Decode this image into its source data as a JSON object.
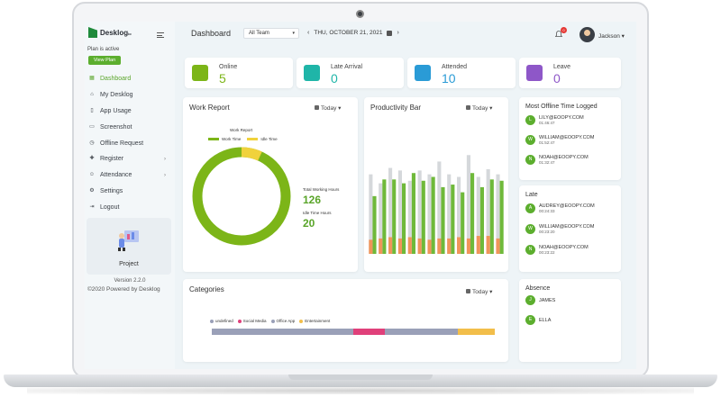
{
  "app": {
    "logo_text": "Desklog",
    "logo_sub": "io",
    "plan_status": "Plan is active",
    "plan_button": "View Plan"
  },
  "sidebar": {
    "items": [
      {
        "label": "Dashboard",
        "icon": "dashboard-icon",
        "active": true
      },
      {
        "label": "My Desklog",
        "icon": "home-icon"
      },
      {
        "label": "App Usage",
        "icon": "phone-icon"
      },
      {
        "label": "Screenshot",
        "icon": "monitor-icon"
      },
      {
        "label": "Offline Request",
        "icon": "clock-icon"
      },
      {
        "label": "Register",
        "icon": "plus-icon",
        "chevron": true
      },
      {
        "label": "Attendance",
        "icon": "people-icon",
        "chevron": true
      },
      {
        "label": "Settings",
        "icon": "gear-icon"
      },
      {
        "label": "Logout",
        "icon": "logout-icon"
      }
    ],
    "project_label": "Project",
    "version": "Version 2.2.0",
    "powered": "©2020 Powered by Desklog"
  },
  "header": {
    "title": "Dashboard",
    "team_select": "All Team",
    "date": "THU, OCTOBER 21, 2021",
    "notification_count": "0",
    "user_name": "Jackson"
  },
  "stats": [
    {
      "label": "Online",
      "value": "5",
      "color": "#7cb518",
      "icon": "online-icon"
    },
    {
      "label": "Late Arrival",
      "value": "0",
      "color": "#1fb5a8",
      "icon": "running-icon"
    },
    {
      "label": "Attended",
      "value": "10",
      "color": "#2a9bd6",
      "icon": "attended-icon"
    },
    {
      "label": "Leave",
      "value": "0",
      "color": "#8e57c8",
      "icon": "leave-icon"
    }
  ],
  "work_report": {
    "title": "Work Report",
    "today": "Today",
    "inner_title": "Work Report",
    "legend_work": "Work Time",
    "legend_idle": "Idle Time",
    "total_label": "Total Working Hours",
    "total_value": "126",
    "idle_label": "Idle Time Hours",
    "idle_value": "20",
    "colors": {
      "work": "#7cb518",
      "idle": "#f0d23c"
    }
  },
  "chart_data": {
    "type": "bar",
    "title": "Productivity Bar",
    "series": [
      {
        "values": [
          45,
          58,
          58,
          55,
          63,
          57,
          60,
          52,
          54,
          48,
          63,
          52,
          58,
          57
        ]
      },
      {
        "values": [
          62,
          55,
          67,
          65,
          57,
          65,
          62,
          72,
          62,
          60,
          77,
          60,
          66,
          62
        ]
      },
      {
        "values": [
          11,
          12,
          13,
          12,
          13,
          12,
          11,
          12,
          12,
          13,
          12,
          14,
          14,
          12
        ]
      }
    ],
    "colors": [
      "#6fb93a",
      "#d5d8db",
      "#f0955a"
    ],
    "ylim": [
      0,
      80
    ]
  },
  "offline_logged": {
    "title": "Most Offline Time Logged",
    "people": [
      {
        "initial": "L",
        "name": "LILY@EOOPY.COM",
        "time": "01:46:47"
      },
      {
        "initial": "W",
        "name": "WILLIAM@EOOPY.COM",
        "time": "01:52:47"
      },
      {
        "initial": "N",
        "name": "NOAH@EOOPY.COM",
        "time": "01:32:47"
      }
    ]
  },
  "late": {
    "title": "Late",
    "people": [
      {
        "initial": "A",
        "name": "AUDREY@EOOPY.COM",
        "time": "00:24:33"
      },
      {
        "initial": "W",
        "name": "WILLIAM@EOOPY.COM",
        "time": "00:23:20"
      },
      {
        "initial": "N",
        "name": "NOAH@EOOPY.COM",
        "time": "00:23:22"
      }
    ]
  },
  "absence": {
    "title": "Absence",
    "people": [
      {
        "initial": "J",
        "name": "JAMES"
      },
      {
        "initial": "E",
        "name": "ELLA"
      }
    ]
  },
  "categories": {
    "title": "Categories",
    "today": "Today",
    "legend": [
      {
        "label": "undefined",
        "color": "#9aa0b8",
        "share": 0.5
      },
      {
        "label": "Social Media",
        "color": "#e0407a",
        "share": 0.11
      },
      {
        "label": "Office App",
        "color": "#9aa0b8",
        "share": 0.26
      },
      {
        "label": "Entertainment",
        "color": "#f2be4a",
        "share": 0.13
      }
    ]
  }
}
